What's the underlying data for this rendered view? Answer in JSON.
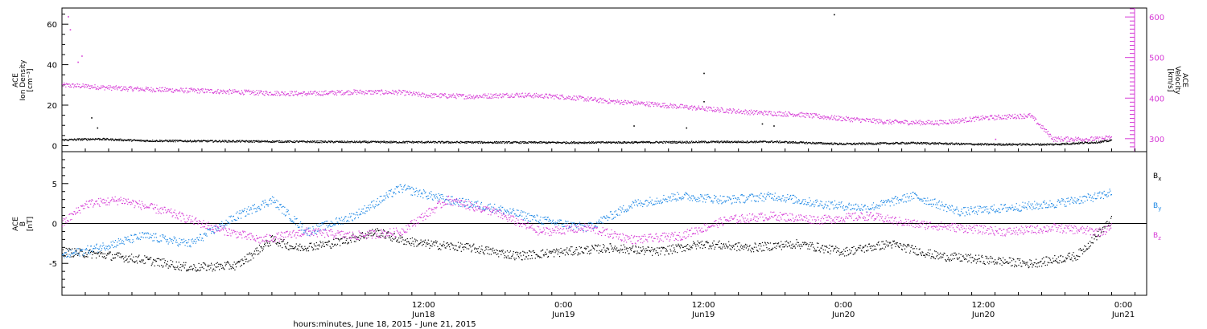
{
  "chart_data": [
    {
      "type": "scatter",
      "panel": "top",
      "xaxis": {
        "start": "2015-06-17T05:00",
        "end": "2015-06-21T02:00",
        "major_ticks": [
          {
            "t": "2015-06-18T12:00",
            "time": "12:00",
            "date": "Jun18"
          },
          {
            "t": "2015-06-19T00:00",
            "time": "0:00",
            "date": "Jun19"
          },
          {
            "t": "2015-06-19T12:00",
            "time": "12:00",
            "date": "Jun19"
          },
          {
            "t": "2015-06-20T00:00",
            "time": "0:00",
            "date": "Jun20"
          },
          {
            "t": "2015-06-20T12:00",
            "time": "12:00",
            "date": "Jun20"
          },
          {
            "t": "2015-06-21T00:00",
            "time": "0:00",
            "date": "Jun21"
          }
        ],
        "title": "hours:minutes, June 18, 2015 - June 21, 2015"
      },
      "left_axis": {
        "label_lines": [
          "ACE",
          "Ion Density",
          "[cm⁻³]"
        ],
        "ylim": [
          -3,
          68
        ],
        "ticks": [
          0,
          20,
          40,
          60
        ],
        "color": "#000000"
      },
      "right_axis": {
        "label_lines": [
          "ACE",
          "Velocity",
          "[km/s]"
        ],
        "ylim": [
          268,
          622
        ],
        "ticks": [
          300,
          400,
          500,
          600
        ],
        "color": "#d63bd6"
      },
      "series": [
        {
          "name": "Ion Density",
          "axis": "left",
          "color": "#000000",
          "points": [
            [
              "2015-06-17T05:00",
              3.0
            ],
            [
              "2015-06-17T08:00",
              3.5
            ],
            [
              "2015-06-17T12:00",
              2.6
            ],
            [
              "2015-06-17T18:00",
              2.4
            ],
            [
              "2015-06-18T00:00",
              2.2
            ],
            [
              "2015-06-18T06:00",
              2.0
            ],
            [
              "2015-06-18T12:00",
              1.9
            ],
            [
              "2015-06-18T18:00",
              1.8
            ],
            [
              "2015-06-19T00:00",
              1.7
            ],
            [
              "2015-06-19T06:00",
              1.8
            ],
            [
              "2015-06-19T12:00",
              2.0
            ],
            [
              "2015-06-19T18:00",
              2.1
            ],
            [
              "2015-06-20T00:00",
              1.0
            ],
            [
              "2015-06-20T06:00",
              1.5
            ],
            [
              "2015-06-20T12:00",
              0.8
            ],
            [
              "2015-06-20T18:00",
              0.8
            ],
            [
              "2015-06-20T22:00",
              2.0
            ],
            [
              "2015-06-20T23:00",
              2.8
            ]
          ],
          "spikes": [
            [
              "2015-06-17T07:30",
              14
            ],
            [
              "2015-06-17T08:00",
              9
            ],
            [
              "2015-06-19T06:00",
              10
            ],
            [
              "2015-06-19T10:30",
              9
            ],
            [
              "2015-06-19T12:00",
              36
            ],
            [
              "2015-06-19T12:00",
              22
            ],
            [
              "2015-06-19T17:00",
              11
            ],
            [
              "2015-06-19T18:00",
              10
            ],
            [
              "2015-06-19T23:10",
              65
            ]
          ]
        },
        {
          "name": "Velocity",
          "axis": "right",
          "color": "#d63bd6",
          "points": [
            [
              "2015-06-17T05:00",
              433
            ],
            [
              "2015-06-17T07:00",
              430
            ],
            [
              "2015-06-17T10:00",
              425
            ],
            [
              "2015-06-17T14:00",
              421
            ],
            [
              "2015-06-17T18:00",
              418
            ],
            [
              "2015-06-17T22:00",
              414
            ],
            [
              "2015-06-18T02:00",
              412
            ],
            [
              "2015-06-18T06:00",
              416
            ],
            [
              "2015-06-18T10:00",
              415
            ],
            [
              "2015-06-18T12:00",
              408
            ],
            [
              "2015-06-18T16:00",
              405
            ],
            [
              "2015-06-18T20:00",
              409
            ],
            [
              "2015-06-19T00:00",
              404
            ],
            [
              "2015-06-19T04:00",
              393
            ],
            [
              "2015-06-19T08:00",
              385
            ],
            [
              "2015-06-19T12:00",
              375
            ],
            [
              "2015-06-19T16:00",
              366
            ],
            [
              "2015-06-19T20:00",
              361
            ],
            [
              "2015-06-20T00:00",
              350
            ],
            [
              "2015-06-20T04:00",
              342
            ],
            [
              "2015-06-20T08:00",
              340
            ],
            [
              "2015-06-20T12:00",
              352
            ],
            [
              "2015-06-20T16:00",
              358
            ],
            [
              "2015-06-20T18:00",
              300
            ],
            [
              "2015-06-20T22:00",
              300
            ],
            [
              "2015-06-20T23:00",
              305
            ]
          ],
          "spikes": [
            [
              "2015-06-17T05:30",
              602
            ],
            [
              "2015-06-17T05:40",
              570
            ],
            [
              "2015-06-17T06:20",
              490
            ],
            [
              "2015-06-17T06:40",
              505
            ],
            [
              "2015-06-20T13:00",
              300
            ]
          ]
        }
      ]
    },
    {
      "type": "scatter",
      "panel": "bottom",
      "xaxis": {
        "start": "2015-06-17T05:00",
        "end": "2015-06-21T02:00"
      },
      "left_axis": {
        "label_lines": [
          "ACE",
          "B",
          "[nT]"
        ],
        "ylim": [
          -9,
          9
        ],
        "ticks": [
          -5,
          0,
          5
        ],
        "zero_line": true,
        "color": "#000000"
      },
      "legend": {
        "placement": "right",
        "entries": [
          {
            "base": "B",
            "sub": "x",
            "color": "#000000"
          },
          {
            "base": "B",
            "sub": "y",
            "color": "#1e88e5"
          },
          {
            "base": "B",
            "sub": "z",
            "color": "#d63bd6"
          }
        ]
      },
      "series": [
        {
          "name": "Bx",
          "color": "#000000",
          "points": [
            [
              "2015-06-17T05:00",
              -3.5
            ],
            [
              "2015-06-17T08:00",
              -3.8
            ],
            [
              "2015-06-17T12:00",
              -4.5
            ],
            [
              "2015-06-17T16:00",
              -5.5
            ],
            [
              "2015-06-17T20:00",
              -5.2
            ],
            [
              "2015-06-17T23:00",
              -2.0
            ],
            [
              "2015-06-18T01:00",
              -3.0
            ],
            [
              "2015-06-18T04:00",
              -2.5
            ],
            [
              "2015-06-18T08:00",
              -1.0
            ],
            [
              "2015-06-18T10:00",
              -2.0
            ],
            [
              "2015-06-18T12:00",
              -2.5
            ],
            [
              "2015-06-18T16:00",
              -3.0
            ],
            [
              "2015-06-18T20:00",
              -4.0
            ],
            [
              "2015-06-19T00:00",
              -3.5
            ],
            [
              "2015-06-19T04:00",
              -3.0
            ],
            [
              "2015-06-19T08:00",
              -3.5
            ],
            [
              "2015-06-19T12:00",
              -2.5
            ],
            [
              "2015-06-19T16:00",
              -3.0
            ],
            [
              "2015-06-19T20:00",
              -2.5
            ],
            [
              "2015-06-20T00:00",
              -3.5
            ],
            [
              "2015-06-20T04:00",
              -2.5
            ],
            [
              "2015-06-20T08:00",
              -4.0
            ],
            [
              "2015-06-20T12:00",
              -4.5
            ],
            [
              "2015-06-20T16:00",
              -5.0
            ],
            [
              "2015-06-20T20:00",
              -4.0
            ],
            [
              "2015-06-20T23:00",
              0.5
            ]
          ]
        },
        {
          "name": "By",
          "color": "#1e88e5",
          "points": [
            [
              "2015-06-17T05:00",
              -4.0
            ],
            [
              "2015-06-17T08:00",
              -3.0
            ],
            [
              "2015-06-17T12:00",
              -1.5
            ],
            [
              "2015-06-17T16:00",
              -2.5
            ],
            [
              "2015-06-17T20:00",
              1.0
            ],
            [
              "2015-06-17T23:00",
              3.0
            ],
            [
              "2015-06-18T02:00",
              -1.0
            ],
            [
              "2015-06-18T06:00",
              1.0
            ],
            [
              "2015-06-18T10:00",
              4.5
            ],
            [
              "2015-06-18T14:00",
              3.0
            ],
            [
              "2015-06-18T18:00",
              2.0
            ],
            [
              "2015-06-18T22:00",
              0.5
            ],
            [
              "2015-06-19T02:00",
              -0.5
            ],
            [
              "2015-06-19T06:00",
              2.5
            ],
            [
              "2015-06-19T10:00",
              3.5
            ],
            [
              "2015-06-19T14:00",
              3.0
            ],
            [
              "2015-06-19T18:00",
              3.5
            ],
            [
              "2015-06-19T22:00",
              2.5
            ],
            [
              "2015-06-20T02:00",
              2.0
            ],
            [
              "2015-06-20T06:00",
              3.5
            ],
            [
              "2015-06-20T10:00",
              1.5
            ],
            [
              "2015-06-20T14:00",
              2.0
            ],
            [
              "2015-06-20T18:00",
              2.5
            ],
            [
              "2015-06-20T22:00",
              3.5
            ],
            [
              "2015-06-20T23:00",
              4.0
            ]
          ]
        },
        {
          "name": "Bz",
          "color": "#d63bd6",
          "points": [
            [
              "2015-06-17T05:00",
              0.0
            ],
            [
              "2015-06-17T07:00",
              2.5
            ],
            [
              "2015-06-17T10:00",
              3.0
            ],
            [
              "2015-06-17T14:00",
              1.5
            ],
            [
              "2015-06-17T18:00",
              -0.5
            ],
            [
              "2015-06-17T22:00",
              -2.0
            ],
            [
              "2015-06-18T02:00",
              -1.0
            ],
            [
              "2015-06-18T06:00",
              -1.5
            ],
            [
              "2015-06-18T10:00",
              -1.0
            ],
            [
              "2015-06-18T14:00",
              3.0
            ],
            [
              "2015-06-18T18:00",
              1.5
            ],
            [
              "2015-06-18T22:00",
              -1.0
            ],
            [
              "2015-06-19T02:00",
              -0.5
            ],
            [
              "2015-06-19T06:00",
              -2.0
            ],
            [
              "2015-06-19T10:00",
              -1.5
            ],
            [
              "2015-06-19T14:00",
              0.5
            ],
            [
              "2015-06-19T18:00",
              1.0
            ],
            [
              "2015-06-19T22:00",
              0.5
            ],
            [
              "2015-06-20T02:00",
              1.0
            ],
            [
              "2015-06-20T06:00",
              0.0
            ],
            [
              "2015-06-20T10:00",
              -0.5
            ],
            [
              "2015-06-20T14:00",
              -1.0
            ],
            [
              "2015-06-20T18:00",
              -0.5
            ],
            [
              "2015-06-20T22:00",
              -1.0
            ],
            [
              "2015-06-20T23:00",
              -0.5
            ]
          ]
        }
      ]
    }
  ]
}
